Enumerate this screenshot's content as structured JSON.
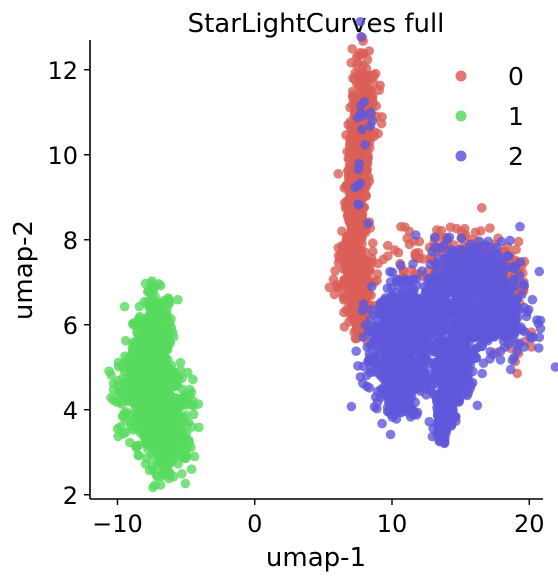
{
  "chart_data": {
    "type": "scatter",
    "title": "StarLightCurves full",
    "xlabel": "umap-1",
    "ylabel": "umap-2",
    "xlim": [
      -12,
      21
    ],
    "ylim": [
      1.9,
      12.7
    ],
    "xticks": [
      -10,
      0,
      10,
      20
    ],
    "yticks": [
      2,
      4,
      6,
      8,
      10,
      12
    ],
    "xtick_labels": [
      "−10",
      "0",
      "10",
      "20"
    ],
    "ytick_labels": [
      "2",
      "4",
      "6",
      "8",
      "10",
      "12"
    ],
    "grid": false,
    "legend_position": "top-right",
    "series": [
      {
        "name": "0",
        "color": "#db5f57",
        "clusters": [
          {
            "cx": 8.0,
            "cy": 11.3,
            "sx": 0.45,
            "sy": 0.65,
            "n": 160
          },
          {
            "cx": 7.6,
            "cy": 10.2,
            "sx": 0.4,
            "sy": 0.55,
            "n": 160
          },
          {
            "cx": 7.3,
            "cy": 9.2,
            "sx": 0.35,
            "sy": 0.5,
            "n": 160
          },
          {
            "cx": 7.3,
            "cy": 8.3,
            "sx": 0.35,
            "sy": 0.45,
            "n": 150
          },
          {
            "cx": 7.3,
            "cy": 7.2,
            "sx": 0.7,
            "sy": 0.4,
            "n": 180
          },
          {
            "cx": 7.6,
            "cy": 6.4,
            "sx": 0.4,
            "sy": 0.4,
            "n": 120
          },
          {
            "cx": 14.5,
            "cy": 7.5,
            "sx": 2.2,
            "sy": 0.4,
            "n": 160
          },
          {
            "cx": 18.5,
            "cy": 6.6,
            "sx": 0.8,
            "sy": 0.6,
            "n": 100
          }
        ]
      },
      {
        "name": "1",
        "color": "#57db5f",
        "clusters": [
          {
            "cx": -7.2,
            "cy": 6.2,
            "sx": 0.6,
            "sy": 0.35,
            "n": 120
          },
          {
            "cx": -7.8,
            "cy": 5.3,
            "sx": 0.9,
            "sy": 0.5,
            "n": 220
          },
          {
            "cx": -8.0,
            "cy": 4.4,
            "sx": 1.1,
            "sy": 0.45,
            "n": 280
          },
          {
            "cx": -6.5,
            "cy": 3.9,
            "sx": 1.0,
            "sy": 0.4,
            "n": 250
          },
          {
            "cx": -6.5,
            "cy": 3.1,
            "sx": 0.9,
            "sy": 0.35,
            "n": 160
          }
        ]
      },
      {
        "name": "2",
        "color": "#5f57db",
        "clusters": [
          {
            "cx": 10.6,
            "cy": 6.2,
            "sx": 1.1,
            "sy": 0.45,
            "n": 260
          },
          {
            "cx": 10.4,
            "cy": 5.2,
            "sx": 1.2,
            "sy": 0.5,
            "n": 260
          },
          {
            "cx": 10.6,
            "cy": 4.4,
            "sx": 0.8,
            "sy": 0.35,
            "n": 150
          },
          {
            "cx": 12.3,
            "cy": 5.8,
            "sx": 0.8,
            "sy": 0.6,
            "n": 160
          },
          {
            "cx": 15.8,
            "cy": 7.1,
            "sx": 1.7,
            "sy": 0.45,
            "n": 320
          },
          {
            "cx": 16.5,
            "cy": 6.1,
            "sx": 1.8,
            "sy": 0.45,
            "n": 320
          },
          {
            "cx": 14.8,
            "cy": 5.2,
            "sx": 0.7,
            "sy": 0.5,
            "n": 180
          },
          {
            "cx": 14.0,
            "cy": 4.3,
            "sx": 0.5,
            "sy": 0.45,
            "n": 120
          },
          {
            "cx": 13.6,
            "cy": 3.6,
            "sx": 0.25,
            "sy": 0.25,
            "n": 50
          },
          {
            "cx": 8.2,
            "cy": 11.4,
            "sx": 0.3,
            "sy": 0.6,
            "n": 10
          },
          {
            "cx": 7.7,
            "cy": 9.5,
            "sx": 0.3,
            "sy": 0.8,
            "n": 10
          }
        ]
      }
    ]
  }
}
